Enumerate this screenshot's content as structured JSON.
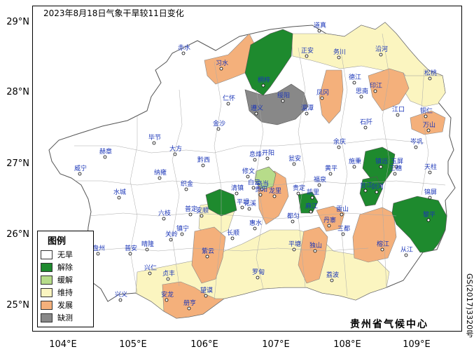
{
  "title": "2023年8月18日气象干旱较11日变化",
  "latitude_labels": [
    "29°N",
    "28°N",
    "27°N",
    "26°N",
    "25°N"
  ],
  "longitude_labels": [
    "104°E",
    "105°E",
    "106°E",
    "107°E",
    "108°E",
    "109°E"
  ],
  "legend": {
    "title": "图例",
    "items": [
      {
        "label": "无旱",
        "color": "#ffffff"
      },
      {
        "label": "解除",
        "color": "#1e8a2e"
      },
      {
        "label": "缓解",
        "color": "#b7dc8a"
      },
      {
        "label": "维持",
        "color": "#fbf5c0"
      },
      {
        "label": "发展",
        "color": "#f4b07b"
      },
      {
        "label": "缺测",
        "color": "#888888"
      }
    ]
  },
  "credit": "贵州省气候中心",
  "map_code": "GS(2017)3320号",
  "cities": [
    {
      "name": "道真"
    },
    {
      "name": "赤水"
    },
    {
      "name": "正安"
    },
    {
      "name": "务川"
    },
    {
      "name": "沿河"
    },
    {
      "name": "习水"
    },
    {
      "name": "桐梓"
    },
    {
      "name": "德江"
    },
    {
      "name": "印江"
    },
    {
      "name": "松桃"
    },
    {
      "name": "仁怀"
    },
    {
      "name": "绥阳"
    },
    {
      "name": "凤冈"
    },
    {
      "name": "思南"
    },
    {
      "name": "湄潭"
    },
    {
      "name": "江口"
    },
    {
      "name": "铜仁"
    },
    {
      "name": "遵义"
    },
    {
      "name": "金沙"
    },
    {
      "name": "石阡"
    },
    {
      "name": "万山"
    },
    {
      "name": "毕节"
    },
    {
      "name": "余庆"
    },
    {
      "name": "岑巩"
    },
    {
      "name": "大方"
    },
    {
      "name": "赫章"
    },
    {
      "name": "黔西"
    },
    {
      "name": "息烽"
    },
    {
      "name": "开阳"
    },
    {
      "name": "瓮安"
    },
    {
      "name": "施秉"
    },
    {
      "name": "镇远"
    },
    {
      "name": "玉屏"
    },
    {
      "name": "威宁"
    },
    {
      "name": "修文"
    },
    {
      "name": "黄平"
    },
    {
      "name": "三穗"
    },
    {
      "name": "天柱"
    },
    {
      "name": "纳雍"
    },
    {
      "name": "织金"
    },
    {
      "name": "清镇"
    },
    {
      "name": "乌当"
    },
    {
      "name": "福泉"
    },
    {
      "name": "台江"
    },
    {
      "name": "剑河"
    },
    {
      "name": "锦屏"
    },
    {
      "name": "水城"
    },
    {
      "name": "白云"
    },
    {
      "name": "贵阳"
    },
    {
      "name": "龙里"
    },
    {
      "name": "贵定"
    },
    {
      "name": "麻江"
    },
    {
      "name": "凯里"
    },
    {
      "name": "雷山"
    },
    {
      "name": "六枝"
    },
    {
      "name": "普定"
    },
    {
      "name": "平坝"
    },
    {
      "name": "花溪"
    },
    {
      "name": "都匀"
    },
    {
      "name": "丹寨"
    },
    {
      "name": "黎平"
    },
    {
      "name": "盘州"
    },
    {
      "name": "普安"
    },
    {
      "name": "晴隆"
    },
    {
      "name": "镇宁"
    },
    {
      "name": "安顺"
    },
    {
      "name": "长顺"
    },
    {
      "name": "惠水"
    },
    {
      "name": "三都"
    },
    {
      "name": "关岭"
    },
    {
      "name": "紫云"
    },
    {
      "name": "平塘"
    },
    {
      "name": "独山"
    },
    {
      "name": "榕江"
    },
    {
      "name": "从江"
    },
    {
      "name": "兴仁"
    },
    {
      "name": "贞丰"
    },
    {
      "name": "罗甸"
    },
    {
      "name": "荔波"
    },
    {
      "name": "兴义"
    },
    {
      "name": "安龙"
    },
    {
      "name": "望谟"
    },
    {
      "name": "册亨"
    }
  ]
}
